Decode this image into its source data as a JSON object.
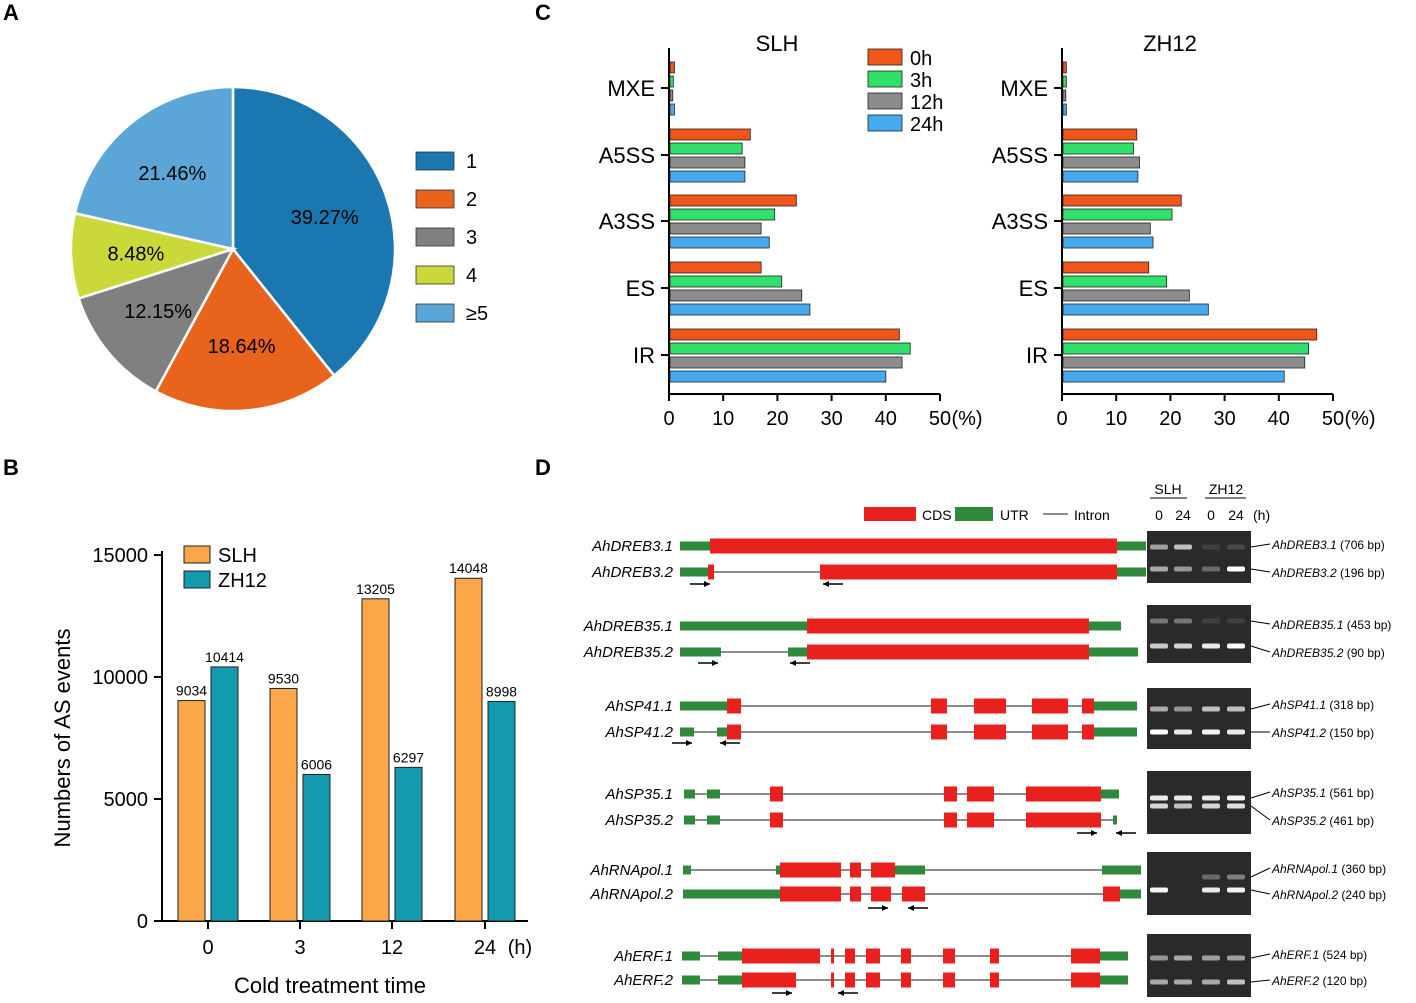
{
  "colors": {
    "pie": [
      "#1a77b0",
      "#e8631c",
      "#808080",
      "#cbd83a",
      "#5ba6d6"
    ],
    "time": [
      "#f0561a",
      "#2fe06a",
      "#8c8c8c",
      "#46aaf0"
    ],
    "slh": "#fba648",
    "zh12": "#139aad",
    "cds": "#e8201e",
    "utr": "#2e8a3a",
    "intron": "#8c8c8c"
  },
  "panels": {
    "a": "A",
    "b": "B",
    "c": "C",
    "d": "D"
  },
  "chart_data": [
    {
      "type": "pie",
      "panel": "A",
      "categories": [
        "1",
        "2",
        "3",
        "4",
        "≥5"
      ],
      "values": [
        39.27,
        18.64,
        12.15,
        8.48,
        21.46
      ],
      "labels": [
        "39.27%",
        "18.64%",
        "12.15%",
        "8.48%",
        "21.46%"
      ],
      "legend": [
        "1",
        "2",
        "3",
        "4",
        "≥5"
      ]
    },
    {
      "type": "bar",
      "panel": "B",
      "categories": [
        "0",
        "3",
        "12",
        "24"
      ],
      "series": [
        {
          "name": "SLH",
          "values": [
            9034,
            9530,
            13205,
            14048
          ]
        },
        {
          "name": "ZH12",
          "values": [
            10414,
            6006,
            6297,
            8998
          ]
        }
      ],
      "value_labels": {
        "SLH": [
          "9034",
          "9530",
          "13205",
          "14048"
        ],
        "ZH12": [
          "10414",
          "6006",
          "6297",
          "8998"
        ]
      },
      "xlabel": "Cold treatment time",
      "xunit": "(h)",
      "ylabel": "Numbers of AS events",
      "ylim": [
        0,
        15000
      ],
      "yticks": [
        "0",
        "5000",
        "10000",
        "15000"
      ]
    },
    {
      "type": "bar",
      "orientation": "horizontal",
      "panel": "C",
      "title": "SLH",
      "categories": [
        "MXE",
        "A5SS",
        "A3SS",
        "ES",
        "IR"
      ],
      "series": [
        {
          "name": "0h",
          "values": [
            1.0,
            15.0,
            23.5,
            17.0,
            42.5
          ]
        },
        {
          "name": "3h",
          "values": [
            0.8,
            13.5,
            19.5,
            20.8,
            44.5
          ]
        },
        {
          "name": "12h",
          "values": [
            0.7,
            14.0,
            17.0,
            24.5,
            43.0
          ]
        },
        {
          "name": "24h",
          "values": [
            1.0,
            14.0,
            18.5,
            26.0,
            40.0
          ]
        }
      ],
      "xlim": [
        0,
        50
      ],
      "xticks": [
        "0",
        "10",
        "20",
        "30",
        "40",
        "50"
      ],
      "xunit": "(%)"
    },
    {
      "type": "bar",
      "orientation": "horizontal",
      "panel": "C",
      "title": "ZH12",
      "categories": [
        "MXE",
        "A5SS",
        "A3SS",
        "ES",
        "IR"
      ],
      "series": [
        {
          "name": "0h",
          "values": [
            0.8,
            13.8,
            22.0,
            16.0,
            47.0
          ]
        },
        {
          "name": "3h",
          "values": [
            0.8,
            13.2,
            20.3,
            19.3,
            45.5
          ]
        },
        {
          "name": "12h",
          "values": [
            0.7,
            14.3,
            16.3,
            23.5,
            44.8
          ]
        },
        {
          "name": "24h",
          "values": [
            0.8,
            14.0,
            16.8,
            27.0,
            41.0
          ]
        }
      ],
      "xlim": [
        0,
        50
      ],
      "xticks": [
        "0",
        "10",
        "20",
        "30",
        "40",
        "50"
      ],
      "xunit": "(%)"
    }
  ],
  "panel_c_legend": [
    "0h",
    "3h",
    "12h",
    "24h"
  ],
  "panel_d": {
    "legend": {
      "cds": "CDS",
      "utr": "UTR",
      "intron": "Intron"
    },
    "gel_header": {
      "slh": "SLH",
      "zh12": "ZH12",
      "lanes": [
        "0",
        "24",
        "0",
        "24"
      ],
      "unit": "(h)"
    },
    "genes": [
      {
        "isoforms": [
          "AhDREB3.1",
          "AhDREB3.2"
        ],
        "products": [
          "AhDREB3.1 (706 bp)",
          "AhDREB3.2 (196 bp)"
        ]
      },
      {
        "isoforms": [
          "AhDREB35.1",
          "AhDREB35.2"
        ],
        "products": [
          "AhDREB35.1 (453 bp)",
          "AhDREB35.2 (90 bp)"
        ]
      },
      {
        "isoforms": [
          "AhSP41.1",
          "AhSP41.2"
        ],
        "products": [
          "AhSP41.1 (318 bp)",
          "AhSP41.2 (150 bp)"
        ]
      },
      {
        "isoforms": [
          "AhSP35.1",
          "AhSP35.2"
        ],
        "products": [
          "AhSP35.1 (561 bp)",
          "AhSP35.2 (461 bp)"
        ]
      },
      {
        "isoforms": [
          "AhRNApol.1",
          "AhRNApol.2"
        ],
        "products": [
          "AhRNApol.1 (360 bp)",
          "AhRNApol.2 (240 bp)"
        ]
      },
      {
        "isoforms": [
          "AhERF.1",
          "AhERF.2"
        ],
        "products": [
          "AhERF.1 (524 bp)",
          "AhERF.2 (120 bp)"
        ]
      }
    ]
  }
}
